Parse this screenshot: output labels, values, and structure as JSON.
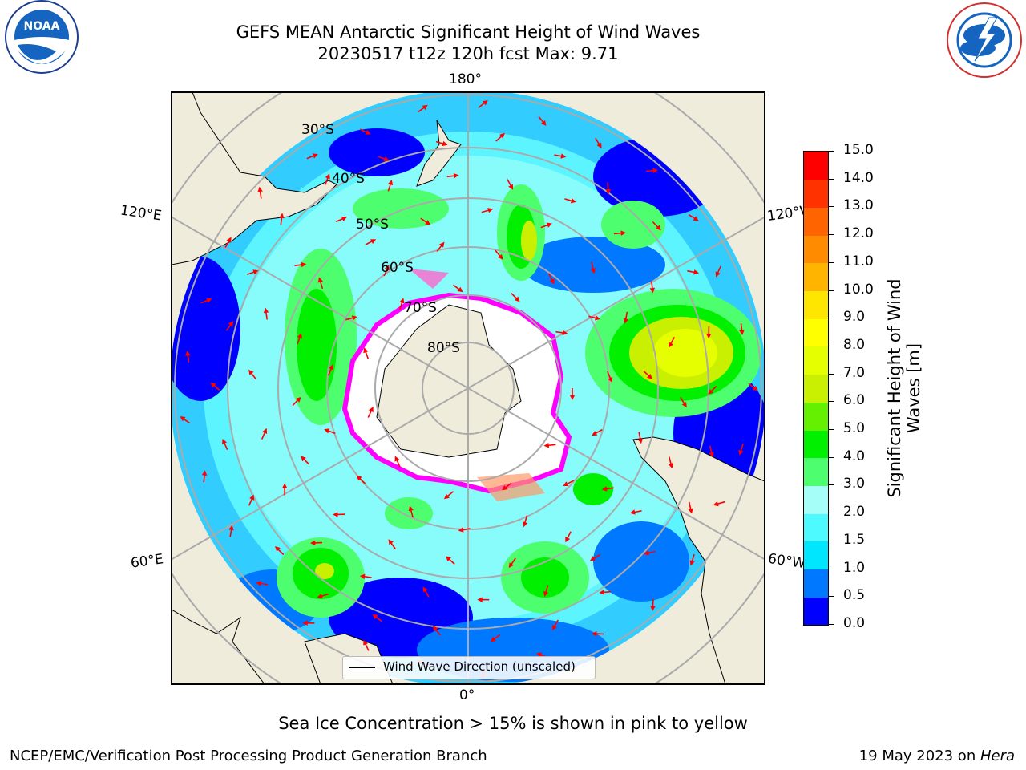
{
  "header": {
    "title_line1": "GEFS MEAN Antarctic Significant Height of Wind Waves",
    "title_line2": "20230517 t12z 120h fcst   Max: 9.71"
  },
  "logos": {
    "left": "noaa-logo",
    "right": "national-weather-service-logo",
    "noaa_text": "NOAA"
  },
  "map": {
    "projection": "south-polar-stereographic",
    "longitude_labels": {
      "top": "180°",
      "bottom": "0°",
      "upper_left": "120°E",
      "upper_right": "120°W",
      "lower_left": "60°E",
      "lower_right": "60°W"
    },
    "latitude_labels": [
      "30°S",
      "40°S",
      "50°S",
      "60°S",
      "70°S",
      "80°S"
    ],
    "legend_label": "Wind Wave Direction (unscaled)",
    "colors": {
      "land": "#efecdc",
      "ocean_low": "#0000ff",
      "sea_ice_edge": "#ff00ff",
      "arrows": "#ff0000",
      "graticule": "#aaaaaa"
    }
  },
  "colorbar": {
    "label": "Significant Height of Wind Waves [m]",
    "ticks": [
      "0.0",
      "0.5",
      "1.0",
      "1.5",
      "2.0",
      "3.0",
      "4.0",
      "5.0",
      "6.0",
      "7.0",
      "8.0",
      "9.0",
      "10.0",
      "11.0",
      "12.0",
      "13.0",
      "14.0",
      "15.0"
    ],
    "colors": [
      "#0000ff",
      "#0078ff",
      "#00e6ff",
      "#4dfaff",
      "#a5fff8",
      "#4dff6e",
      "#00f000",
      "#64f000",
      "#c8f000",
      "#e6ff00",
      "#ffff00",
      "#ffe600",
      "#ffb400",
      "#ff8c00",
      "#ff6400",
      "#ff3200",
      "#ff0000"
    ]
  },
  "footer": {
    "note": "Sea Ice Concentration > 15% is shown in pink to yellow",
    "credit": "NCEP/EMC/Verification Post Processing Product Generation Branch",
    "date": "19 May 2023 on ",
    "machine": "Hera"
  }
}
